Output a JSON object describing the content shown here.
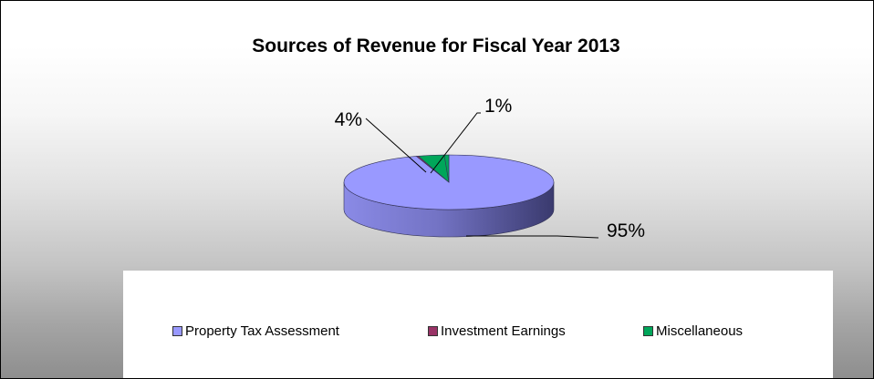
{
  "chart_data": {
    "type": "pie",
    "style": "3d",
    "title": "Sources of Revenue for Fiscal Year 2013",
    "slices": [
      {
        "name": "Property Tax Assessment",
        "value": 95,
        "label": "95%",
        "color": "#9999ff"
      },
      {
        "name": "Investment Earnings",
        "value": 0.3,
        "label": "",
        "color": "#993366"
      },
      {
        "name": "Miscellaneous",
        "value": 4,
        "label": "4%",
        "color": "#00a65a"
      },
      {
        "name": "",
        "value": 0.7,
        "label": "1%",
        "color": "#00a65a"
      }
    ],
    "legend": {
      "position": "bottom",
      "entries": [
        {
          "label": "Property Tax Assessment",
          "color": "#9999ff"
        },
        {
          "label": "Investment Earnings",
          "color": "#993366"
        },
        {
          "label": "Miscellaneous",
          "color": "#00a65a"
        }
      ]
    }
  }
}
